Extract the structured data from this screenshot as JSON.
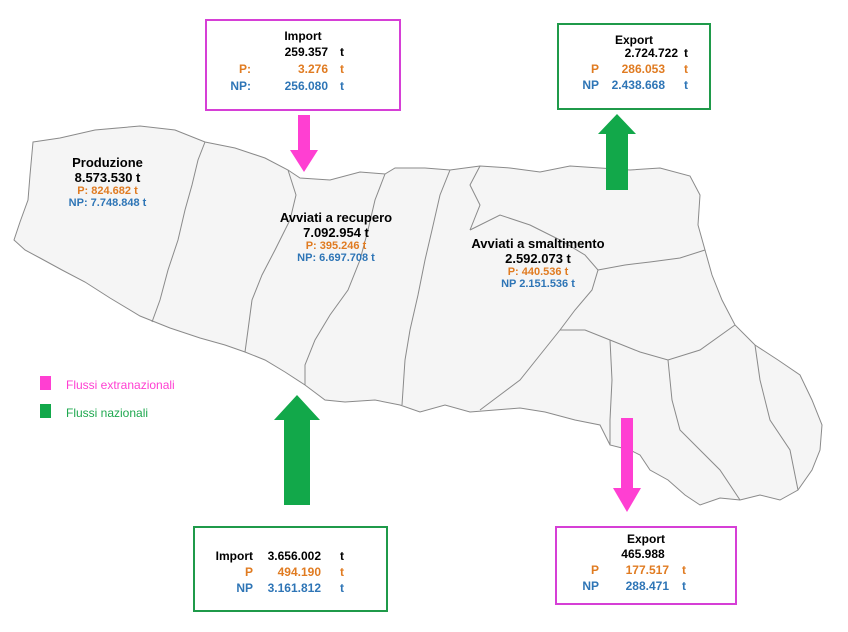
{
  "regions": {
    "produzione": {
      "name": "Produzione",
      "total": "8.573.530 t",
      "p": "P: 824.682 t",
      "np": "NP: 7.748.848 t"
    },
    "recupero": {
      "name": "Avviati a recupero",
      "total": "7.092.954 t",
      "p": "P: 395.246 t",
      "np": "NP: 6.697.708 t"
    },
    "smaltimento": {
      "name": "Avviati a smaltimento",
      "total": "2.592.073 t",
      "p": "P: 440.536 t",
      "np": "NP 2.151.536 t"
    }
  },
  "boxes": {
    "import_extra": {
      "title": "Import",
      "total": "259.357",
      "p_label": "P:",
      "p_value": "3.276",
      "np_label": "NP:",
      "np_value": "256.080",
      "unit": "t"
    },
    "export_naz": {
      "title": "Export",
      "total": "2.724.722",
      "p_label": "P",
      "p_value": "286.053",
      "np_label": "NP",
      "np_value": "2.438.668",
      "unit": "t"
    },
    "import_naz": {
      "title": "Import",
      "total": "3.656.002",
      "p_label": "P",
      "p_value": "494.190",
      "np_label": "NP",
      "np_value": "3.161.812",
      "unit": "t"
    },
    "export_extra": {
      "title": "Export",
      "total": "465.988",
      "p_label": "P",
      "p_value": "177.517",
      "np_label": "NP",
      "np_value": "288.471",
      "unit": "t"
    }
  },
  "legend": [
    {
      "label": "Flussi extranazionali",
      "color": "#ff3fd2"
    },
    {
      "label": "Flussi nazionali",
      "color": "#1fa84f"
    }
  ],
  "colors": {
    "magenta": "#ff3fd2",
    "green": "#12a84a",
    "orange": "#e07b21",
    "blue": "#2e75b6"
  }
}
